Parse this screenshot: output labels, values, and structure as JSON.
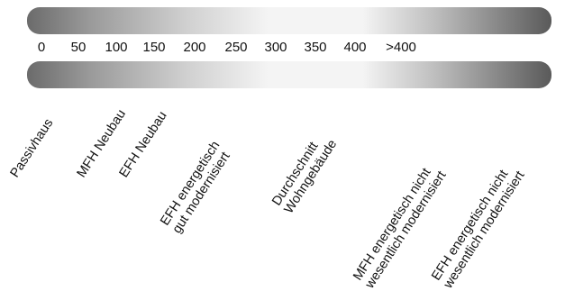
{
  "scale": {
    "ticks": [
      "0",
      "50",
      "100",
      "150",
      "200",
      "250",
      "300",
      "350",
      "400",
      ">400"
    ],
    "colors": {
      "band": "#5a5a5a",
      "band_light": "#f4f4f4"
    }
  },
  "categories": [
    {
      "lines": [
        "Passivhaus"
      ]
    },
    {
      "lines": [
        "MFH Neubau"
      ]
    },
    {
      "lines": [
        "EFH Neubau"
      ]
    },
    {
      "lines": [
        "EFH energetisch",
        "gut modernisiert"
      ]
    },
    {
      "lines": [
        "Durchschnitt",
        "Wohngebäude"
      ]
    },
    {
      "lines": [
        "MFH energetisch nicht",
        "wesentlich modernisiert"
      ]
    },
    {
      "lines": [
        "EFH energetisch nicht",
        "wesentlich modernisiert"
      ]
    }
  ]
}
